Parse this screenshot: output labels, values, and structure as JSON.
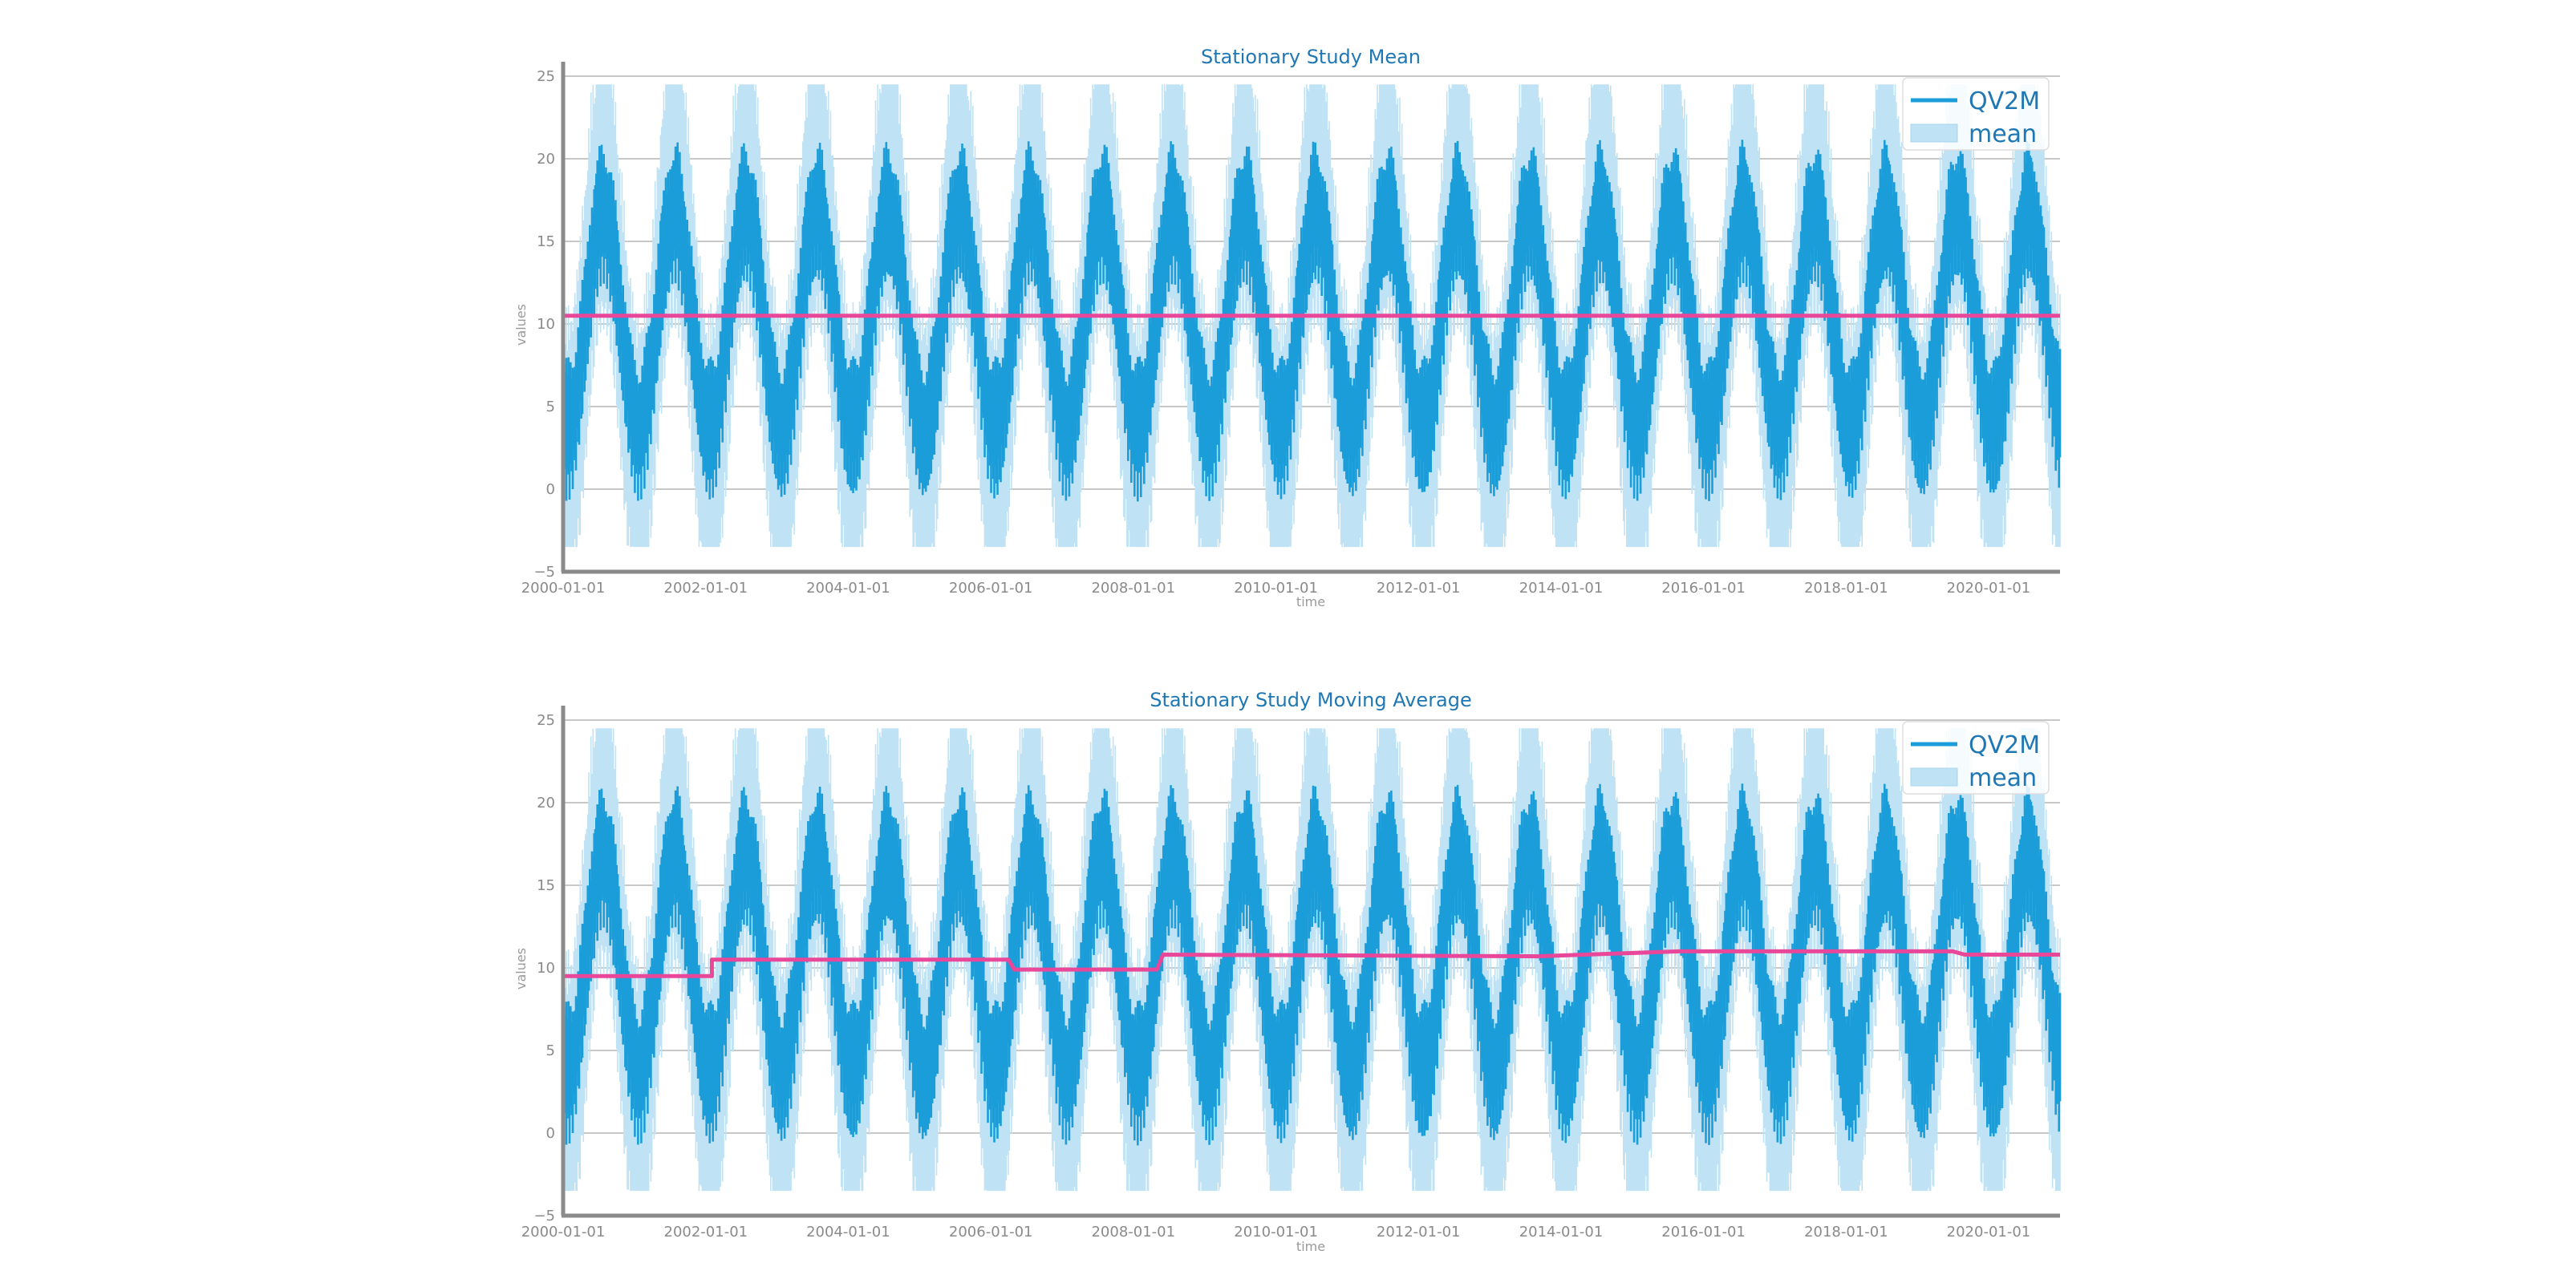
{
  "chart_data": [
    {
      "type": "line",
      "title": "Stationary Study Mean",
      "xlabel": "time",
      "ylabel": "values",
      "xlim": [
        "2000-01-01",
        "2021-01-01"
      ],
      "ylim": [
        -5,
        25
      ],
      "yticks": [
        -5,
        0,
        5,
        10,
        15,
        20,
        25
      ],
      "xticks": [
        "2000-01-01",
        "2002-01-01",
        "2004-01-01",
        "2006-01-01",
        "2008-01-01",
        "2010-01-01",
        "2012-01-01",
        "2014-01-01",
        "2016-01-01",
        "2018-01-01",
        "2020-01-01"
      ],
      "grid": "horizontal",
      "legend_position": "top-right",
      "legend": [
        "QV2M",
        "mean"
      ],
      "series": [
        {
          "name": "QV2M",
          "role": "daily values, seasonal cycle",
          "approx_yearly_min": 2,
          "approx_yearly_max": 18.5,
          "light_band_range": [
            -3.5,
            24.5
          ],
          "color": "#1a9dd9",
          "band_color": "#bfe3f4"
        },
        {
          "name": "mean",
          "x": [
            "2000-01-01",
            "2021-01-01"
          ],
          "values": [
            10.5,
            10.5
          ],
          "color": "#e8479a"
        }
      ]
    },
    {
      "type": "line",
      "title": "Stationary Study Moving Average",
      "xlabel": "time",
      "ylabel": "values",
      "xlim": [
        "2000-01-01",
        "2021-01-01"
      ],
      "ylim": [
        -5,
        25
      ],
      "yticks": [
        -5,
        0,
        5,
        10,
        15,
        20,
        25
      ],
      "xticks": [
        "2000-01-01",
        "2002-01-01",
        "2004-01-01",
        "2006-01-01",
        "2008-01-01",
        "2010-01-01",
        "2012-01-01",
        "2014-01-01",
        "2016-01-01",
        "2018-01-01",
        "2020-01-01"
      ],
      "grid": "horizontal",
      "legend_position": "top-right",
      "legend": [
        "QV2M",
        "mean"
      ],
      "series": [
        {
          "name": "QV2M",
          "role": "daily values, seasonal cycle",
          "approx_yearly_min": 2,
          "approx_yearly_max": 18.5,
          "light_band_range": [
            -3.5,
            24.5
          ],
          "color": "#1a9dd9",
          "band_color": "#bfe3f4"
        },
        {
          "name": "mean",
          "x": [
            "2000-01-01",
            "2002-02-01",
            "2002-02-01",
            "2006-04-01",
            "2006-05-01",
            "2008-05-01",
            "2008-06-01",
            "2013-09-01",
            "2015-09-01",
            "2019-07-01",
            "2019-09-01",
            "2021-01-01"
          ],
          "values": [
            9.5,
            9.5,
            10.5,
            10.5,
            9.9,
            9.9,
            10.8,
            10.7,
            11.0,
            11.0,
            10.8,
            10.8
          ],
          "color": "#e8479a"
        }
      ]
    }
  ]
}
